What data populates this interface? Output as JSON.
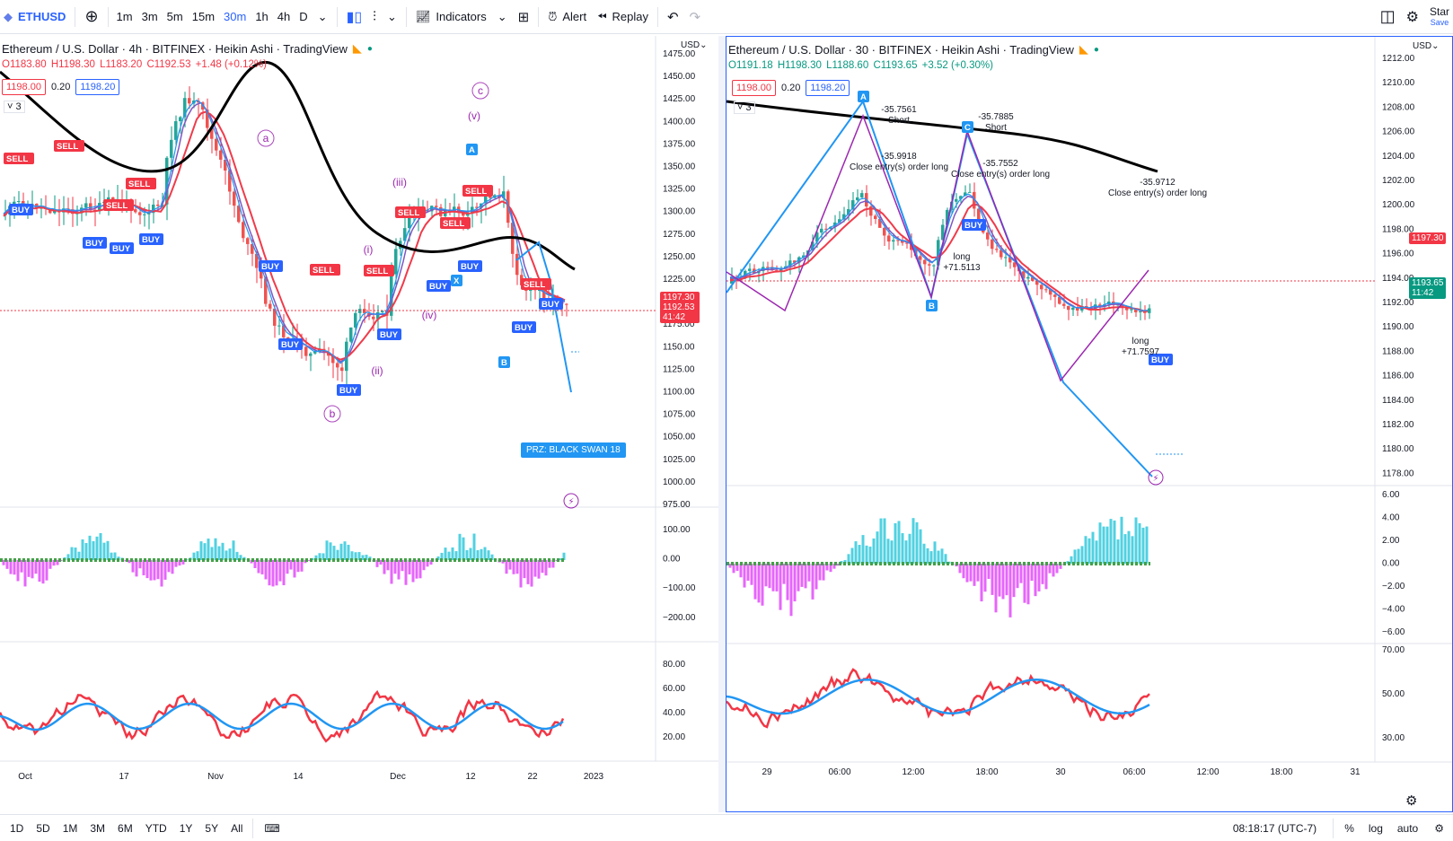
{
  "toolbar": {
    "symbol": "ETHUSD",
    "intervals": [
      "1m",
      "3m",
      "5m",
      "15m",
      "30m",
      "1h",
      "4h",
      "D"
    ],
    "active_interval": "30m",
    "indicators_label": "Indicators",
    "alert_label": "Alert",
    "replay_label": "Replay",
    "start_label": "Star",
    "save_label": "Save"
  },
  "left": {
    "title": "Ethereum / U.S. Dollar · 4h · BITFINEX · Heikin Ashi · TradingView",
    "ohlc": {
      "o": "O1183.80",
      "h": "H1198.30",
      "l": "L1183.20",
      "c": "C1192.53",
      "chg": "+1.48 (+0.12%)"
    },
    "bid": "1198.00",
    "spread": "0.20",
    "ask": "1198.20",
    "layers": "3",
    "currency": "USD",
    "price_ticks": [
      "1475.00",
      "1450.00",
      "1425.00",
      "1400.00",
      "1375.00",
      "1350.00",
      "1325.00",
      "1300.00",
      "1275.00",
      "1250.00",
      "1225.00",
      "1200.00",
      "1175.00",
      "1150.00",
      "1125.00",
      "1100.00",
      "1075.00",
      "1050.00",
      "1025.00",
      "1000.00",
      "975.00"
    ],
    "last_price": "1197.30",
    "hc_price": "1192.53",
    "countdown": "41:42",
    "osc_ticks": [
      "100.00",
      "0.00",
      "−100.00",
      "−200.00"
    ],
    "rsi_ticks": [
      "80.00",
      "60.00",
      "40.00",
      "20.00"
    ],
    "time_ticks": [
      "Oct",
      "17",
      "Nov",
      "14",
      "Dec",
      "12",
      "22",
      "2023"
    ],
    "wave_labels": [
      "a",
      "b",
      "c",
      "(i)",
      "(ii)",
      "(iii)",
      "(iv)",
      "(v)"
    ],
    "prz_label": "PRZ: BLACK SWAN 18",
    "signals": {
      "buy": "BUY",
      "sell": "SELL",
      "a": "A",
      "b": "B",
      "x": "X"
    }
  },
  "right": {
    "title": "Ethereum / U.S. Dollar · 30 · BITFINEX · Heikin Ashi · TradingView",
    "ohlc": {
      "o": "O1191.18",
      "h": "H1198.30",
      "l": "L1188.60",
      "c": "C1193.65",
      "chg": "+3.52 (+0.30%)"
    },
    "bid": "1198.00",
    "spread": "0.20",
    "ask": "1198.20",
    "layers": "3",
    "currency": "USD",
    "price_ticks": [
      "1212.00",
      "1210.00",
      "1208.00",
      "1206.00",
      "1204.00",
      "1202.00",
      "1200.00",
      "1198.00",
      "1196.00",
      "1194.00",
      "1192.00",
      "1190.00",
      "1188.00",
      "1186.00",
      "1184.00",
      "1182.00",
      "1180.00",
      "1178.00"
    ],
    "last_price": "1197.30",
    "hc_price": "1193.65",
    "countdown": "11:42",
    "osc_ticks": [
      "6.00",
      "4.00",
      "2.00",
      "0.00",
      "−2.00",
      "−4.00",
      "−6.00"
    ],
    "rsi_ticks": [
      "70.00",
      "50.00",
      "30.00"
    ],
    "time_ticks": [
      "29",
      "06:00",
      "12:00",
      "18:00",
      "30",
      "06:00",
      "12:00",
      "18:00",
      "31"
    ],
    "annotations": {
      "a1": "-35.7561",
      "a1b": "Short",
      "a2": "-35.7885",
      "a2b": "Short",
      "a3": "-35.9918",
      "a3b": "Close entry(s) order long",
      "a4": "-35.7552",
      "a4b": "Close entry(s) order long",
      "a5": "-35.9712",
      "a5b": "Close entry(s) order long",
      "l1": "long",
      "l1b": "+71.5113",
      "l2": "long",
      "l2b": "+71.7597",
      "buy": "BUY",
      "pA": "A",
      "pB": "B",
      "pC": "C"
    }
  },
  "bottom": {
    "ranges": [
      "1D",
      "5D",
      "1M",
      "3M",
      "6M",
      "YTD",
      "1Y",
      "5Y",
      "All"
    ],
    "clock": "08:18:17 (UTC-7)",
    "pct": "%",
    "log": "log",
    "auto": "auto"
  },
  "colors": {
    "accent": "#2962ff",
    "up": "#089981",
    "down": "#f23645"
  }
}
